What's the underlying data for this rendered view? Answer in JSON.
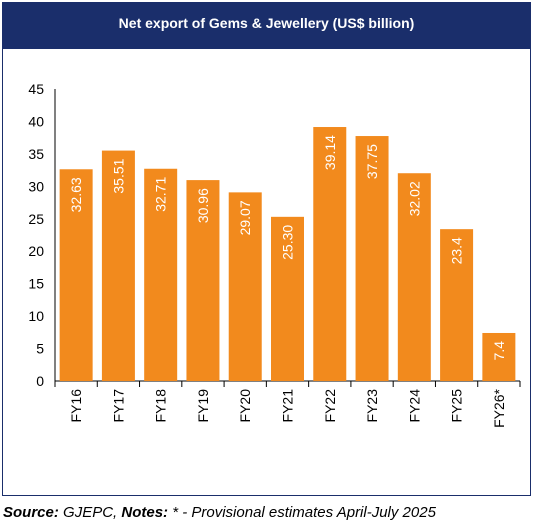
{
  "chart_data": {
    "type": "bar",
    "title": "Net export of Gems & Jewellery (US$ billion)",
    "categories": [
      "FY16",
      "FY17",
      "FY18",
      "FY19",
      "FY20",
      "FY21",
      "FY22",
      "FY23",
      "FY24",
      "FY25",
      "FY26*"
    ],
    "values": [
      32.63,
      35.51,
      32.71,
      30.96,
      29.07,
      25.3,
      39.14,
      37.75,
      32.02,
      23.4,
      7.4
    ],
    "data_labels": [
      "32.63",
      "35.51",
      "32.71",
      "30.96",
      "29.07",
      "25.30",
      "39.14",
      "37.75",
      "32.02",
      "23.4",
      "7.4"
    ],
    "ylim": [
      0,
      45
    ],
    "yticks": [
      0,
      5,
      10,
      15,
      20,
      25,
      30,
      35,
      40,
      45
    ],
    "grid": false,
    "legend": "none",
    "bar_color": "#f28a1d",
    "label_color": "#ffffff"
  },
  "footer": {
    "source_label": "Source:",
    "source_value": " GJEPC, ",
    "notes_label": "Notes:",
    "notes_value": " * - Provisional estimates April-July 2025"
  },
  "colors": {
    "header": "#1a2e6b",
    "bars": "#f28a1d"
  }
}
